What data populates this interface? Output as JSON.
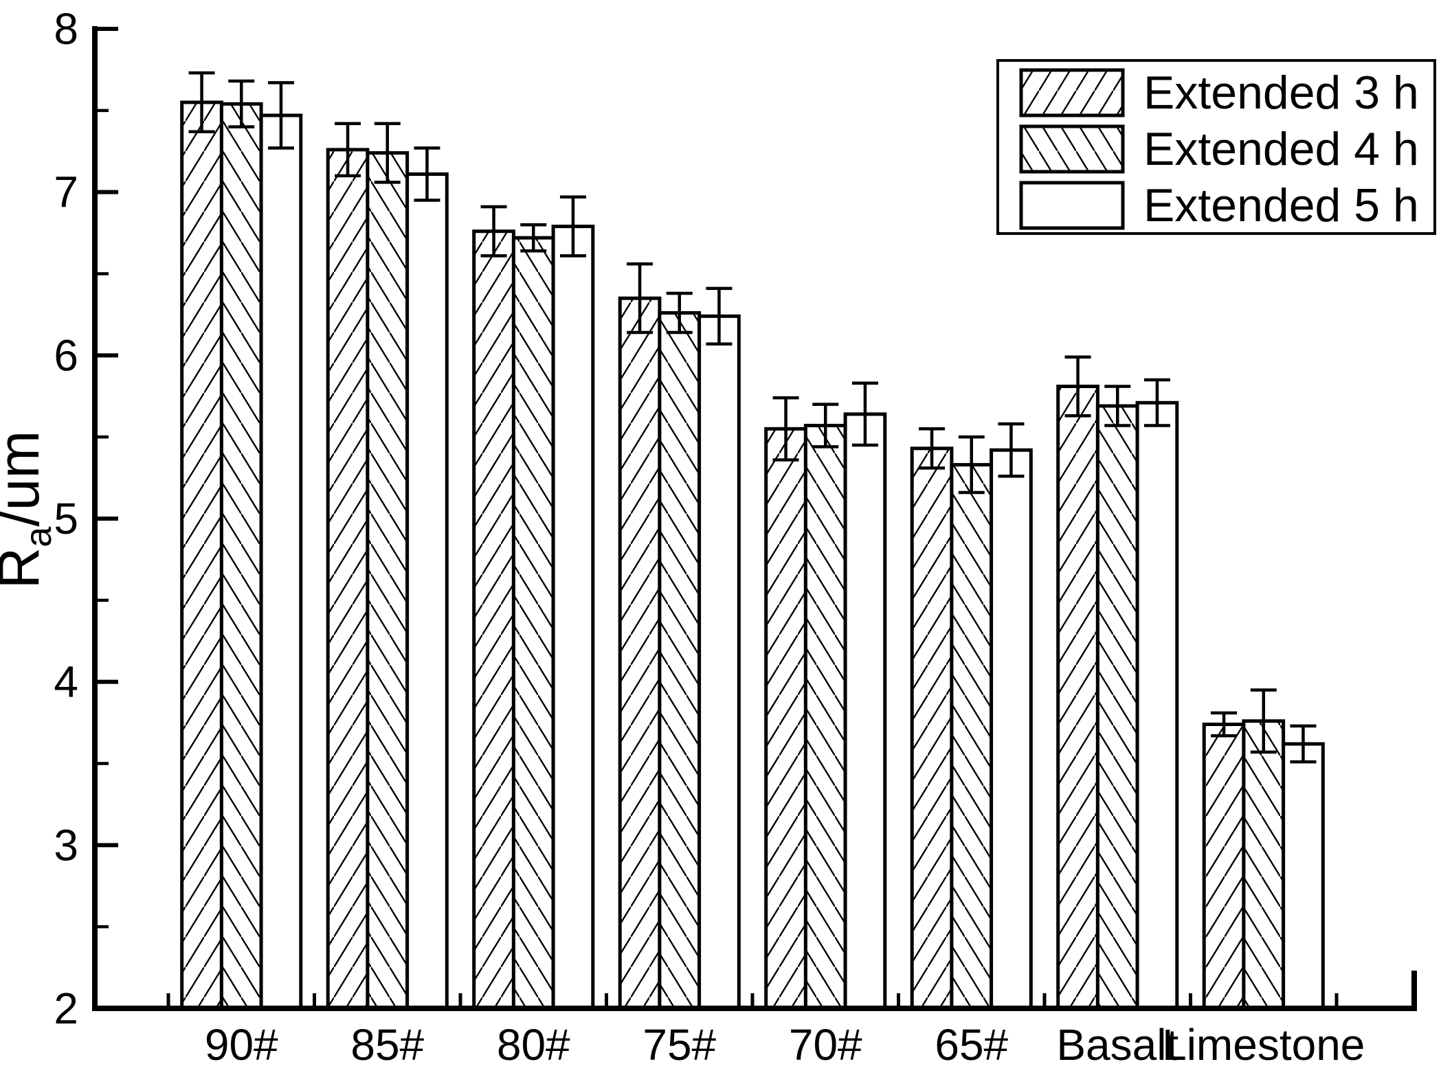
{
  "figure": {
    "background_color": "#ffffff",
    "ink_color": "#000000"
  },
  "chart_data": {
    "type": "bar",
    "title": "",
    "xlabel": "",
    "ylabel": "Ra/um",
    "ylabel_parts": {
      "main": "R",
      "subscript": "a",
      "rest": "/um"
    },
    "ylim": [
      2,
      8
    ],
    "y_major_ticks": [
      2,
      3,
      4,
      5,
      6,
      7,
      8
    ],
    "y_minor_tick_step": 0.5,
    "grid": false,
    "legend_position": "top-right",
    "categories": [
      "90#",
      "85#",
      "80#",
      "75#",
      "70#",
      "65#",
      "Basalt",
      "Limestone"
    ],
    "series": [
      {
        "name": "Extended 3 h",
        "hatch": "forward-diagonal",
        "values": [
          7.55,
          7.26,
          6.76,
          6.35,
          5.55,
          5.43,
          5.81,
          3.74
        ],
        "errors": [
          0.18,
          0.16,
          0.15,
          0.21,
          0.19,
          0.12,
          0.18,
          0.07
        ]
      },
      {
        "name": "Extended 4 h",
        "hatch": "backward-diagonal",
        "values": [
          7.54,
          7.24,
          6.72,
          6.26,
          5.57,
          5.33,
          5.69,
          3.76
        ],
        "errors": [
          0.14,
          0.18,
          0.08,
          0.12,
          0.13,
          0.17,
          0.12,
          0.19
        ]
      },
      {
        "name": "Extended 5 h",
        "hatch": "none",
        "values": [
          7.47,
          7.11,
          6.79,
          6.24,
          5.64,
          5.42,
          5.71,
          3.62
        ],
        "errors": [
          0.2,
          0.16,
          0.18,
          0.17,
          0.19,
          0.16,
          0.14,
          0.11
        ]
      }
    ]
  }
}
